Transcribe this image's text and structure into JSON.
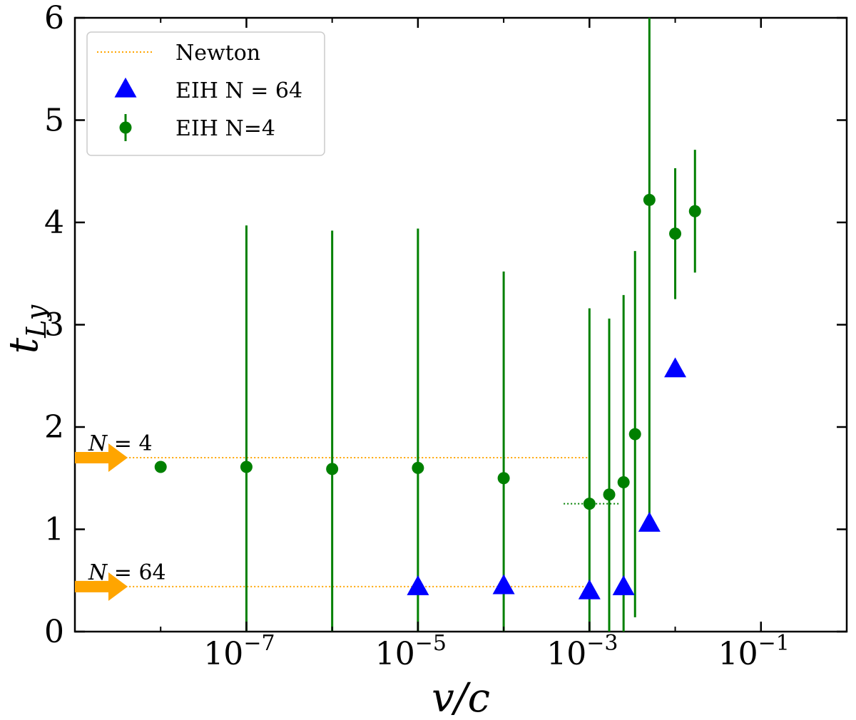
{
  "chart_data": {
    "type": "scatter",
    "x_scale": "log",
    "xlim": [
      1e-09,
      1
    ],
    "ylim": [
      0,
      6
    ],
    "xlabel": "v/c",
    "ylabel": "t",
    "ylabel_sub": "Ly",
    "x_ticks": [
      {
        "value": 1e-07,
        "base": "10",
        "exp": "−7"
      },
      {
        "value": 1e-05,
        "base": "10",
        "exp": "−5"
      },
      {
        "value": 0.001,
        "base": "10",
        "exp": "−3"
      },
      {
        "value": 0.1,
        "base": "10",
        "exp": "−1"
      }
    ],
    "x_minor_ticks": [
      1e-08,
      1e-06,
      0.0001,
      0.01
    ],
    "y_ticks": [
      "0",
      "1",
      "2",
      "3",
      "4",
      "5",
      "6"
    ],
    "grid": false,
    "legend_position": "top-left",
    "legend": [
      {
        "label": "Newton",
        "marker": "dotted-line",
        "color": "#FFA500"
      },
      {
        "label": "EIH N = 64",
        "marker": "triangle",
        "color": "#0000FF"
      },
      {
        "label": "EIH N=4",
        "marker": "circle-errorbar",
        "color": "#008000"
      }
    ],
    "series": [
      {
        "name": "EIH N = 64",
        "color": "#0000FF",
        "marker": "triangle",
        "points": [
          {
            "x": 1e-05,
            "y": 0.43
          },
          {
            "x": 0.0001,
            "y": 0.44
          },
          {
            "x": 0.001,
            "y": 0.39
          },
          {
            "x": 0.0025,
            "y": 0.43
          },
          {
            "x": 0.005,
            "y": 1.05
          },
          {
            "x": 0.01,
            "y": 2.56
          }
        ]
      },
      {
        "name": "EIH N=4",
        "color": "#008000",
        "marker": "circle",
        "points": [
          {
            "x": 1e-08,
            "y": 1.61,
            "err": 0
          },
          {
            "x": 1e-07,
            "y": 1.61,
            "err": 2.36
          },
          {
            "x": 1e-06,
            "y": 1.59,
            "err": 2.33
          },
          {
            "x": 1e-05,
            "y": 1.6,
            "err": 2.34
          },
          {
            "x": 0.0001,
            "y": 1.5,
            "err": 2.02
          },
          {
            "x": 0.001,
            "y": 1.25,
            "err": 1.91
          },
          {
            "x": 0.0017,
            "y": 1.34,
            "err": 1.72
          },
          {
            "x": 0.0025,
            "y": 1.46,
            "err": 1.83
          },
          {
            "x": 0.0034,
            "y": 1.93,
            "err": 1.79
          },
          {
            "x": 0.005,
            "y": 4.22,
            "err": 3.15
          },
          {
            "x": 0.01,
            "y": 3.89,
            "err": 0.64
          },
          {
            "x": 0.017,
            "y": 4.11,
            "err": 0.6
          }
        ]
      }
    ],
    "reference_lines": [
      {
        "name": "Newton N=4",
        "y": 1.7,
        "x_from": 2e-09,
        "x_to": 0.001,
        "color": "#FFA500"
      },
      {
        "name": "Newton N=64",
        "y": 0.44,
        "x_from": 2e-09,
        "x_to": 0.001,
        "color": "#FFA500"
      },
      {
        "name": "green dotted",
        "y": 1.25,
        "x_from": 0.0005,
        "x_to": 0.0022,
        "color": "#008000"
      }
    ],
    "arrows": [
      {
        "label_var": "N",
        "label_rest": " = 4",
        "y": 1.7,
        "color": "#FFA500"
      },
      {
        "label_var": "N",
        "label_rest": " = 64",
        "y": 0.44,
        "color": "#FFA500"
      }
    ]
  }
}
